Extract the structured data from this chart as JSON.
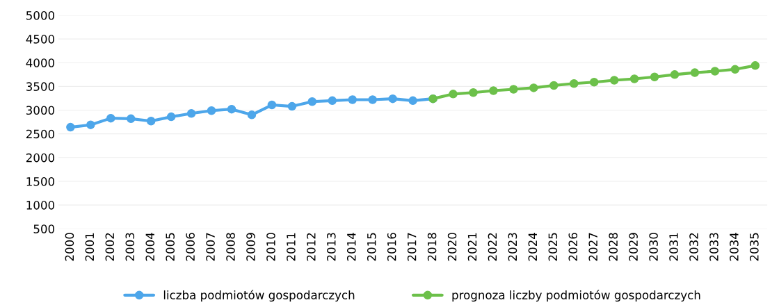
{
  "chart_data": {
    "type": "line",
    "categories": [
      "2000",
      "2001",
      "2002",
      "2003",
      "2004",
      "2005",
      "2006",
      "2007",
      "2008",
      "2009",
      "2010",
      "2011",
      "2012",
      "2013",
      "2014",
      "2015",
      "2016",
      "2017",
      "2018",
      "2020",
      "2021",
      "2022",
      "2023",
      "2024",
      "2025",
      "2026",
      "2027",
      "2028",
      "2029",
      "2030",
      "2031",
      "2032",
      "2033",
      "2034",
      "2035"
    ],
    "series": [
      {
        "name": "liczba podmiotów gospodarczych",
        "color": "#4da6ea",
        "values": [
          2640,
          2690,
          2830,
          2820,
          2770,
          2860,
          2930,
          2990,
          3020,
          2900,
          3110,
          3080,
          3180,
          3200,
          3220,
          3220,
          3240,
          3200,
          3240,
          null,
          null,
          null,
          null,
          null,
          null,
          null,
          null,
          null,
          null,
          null,
          null,
          null,
          null,
          null,
          null
        ]
      },
      {
        "name": "prognoza liczby podmiotów gospodarczych",
        "color": "#6cc04a",
        "values": [
          null,
          null,
          null,
          null,
          null,
          null,
          null,
          null,
          null,
          null,
          null,
          null,
          null,
          null,
          null,
          null,
          null,
          null,
          3240,
          3340,
          3370,
          3410,
          3440,
          3470,
          3520,
          3560,
          3590,
          3630,
          3660,
          3700,
          3750,
          3790,
          3820,
          3860,
          3940
        ]
      }
    ],
    "ylim": [
      500,
      5000
    ],
    "yticks": [
      500,
      1000,
      1500,
      2000,
      2500,
      3000,
      3500,
      4000,
      4500,
      5000
    ],
    "grid": "y",
    "legend": "bottom",
    "marker": "circle",
    "line_style": "solid"
  }
}
